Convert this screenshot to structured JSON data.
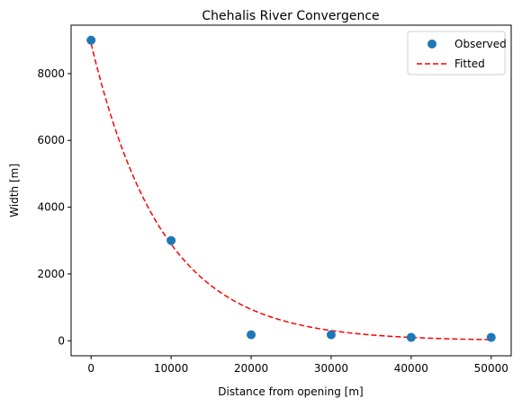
{
  "chart_data": {
    "type": "scatter",
    "title": "Chehalis River Convergence",
    "xlabel": "Distance from opening [m]",
    "ylabel": "Width [m]",
    "xlim": [
      -2500,
      52500
    ],
    "ylim": [
      -450,
      9450
    ],
    "xticks": [
      0,
      10000,
      20000,
      30000,
      40000,
      50000
    ],
    "yticks": [
      0,
      2000,
      4000,
      6000,
      8000
    ],
    "grid": false,
    "legend_placement": "top-right",
    "series": [
      {
        "name": "Observed",
        "kind": "scatter",
        "color": "#1f77b4",
        "x": [
          0,
          10000,
          20000,
          30000,
          40000,
          50000
        ],
        "y": [
          9000,
          3000,
          180,
          180,
          100,
          100
        ]
      },
      {
        "name": "Fitted",
        "kind": "line",
        "style": "dashed",
        "color": "#ff0000",
        "model": "exponential",
        "W0": 8900,
        "Lb": 8900
      }
    ]
  }
}
